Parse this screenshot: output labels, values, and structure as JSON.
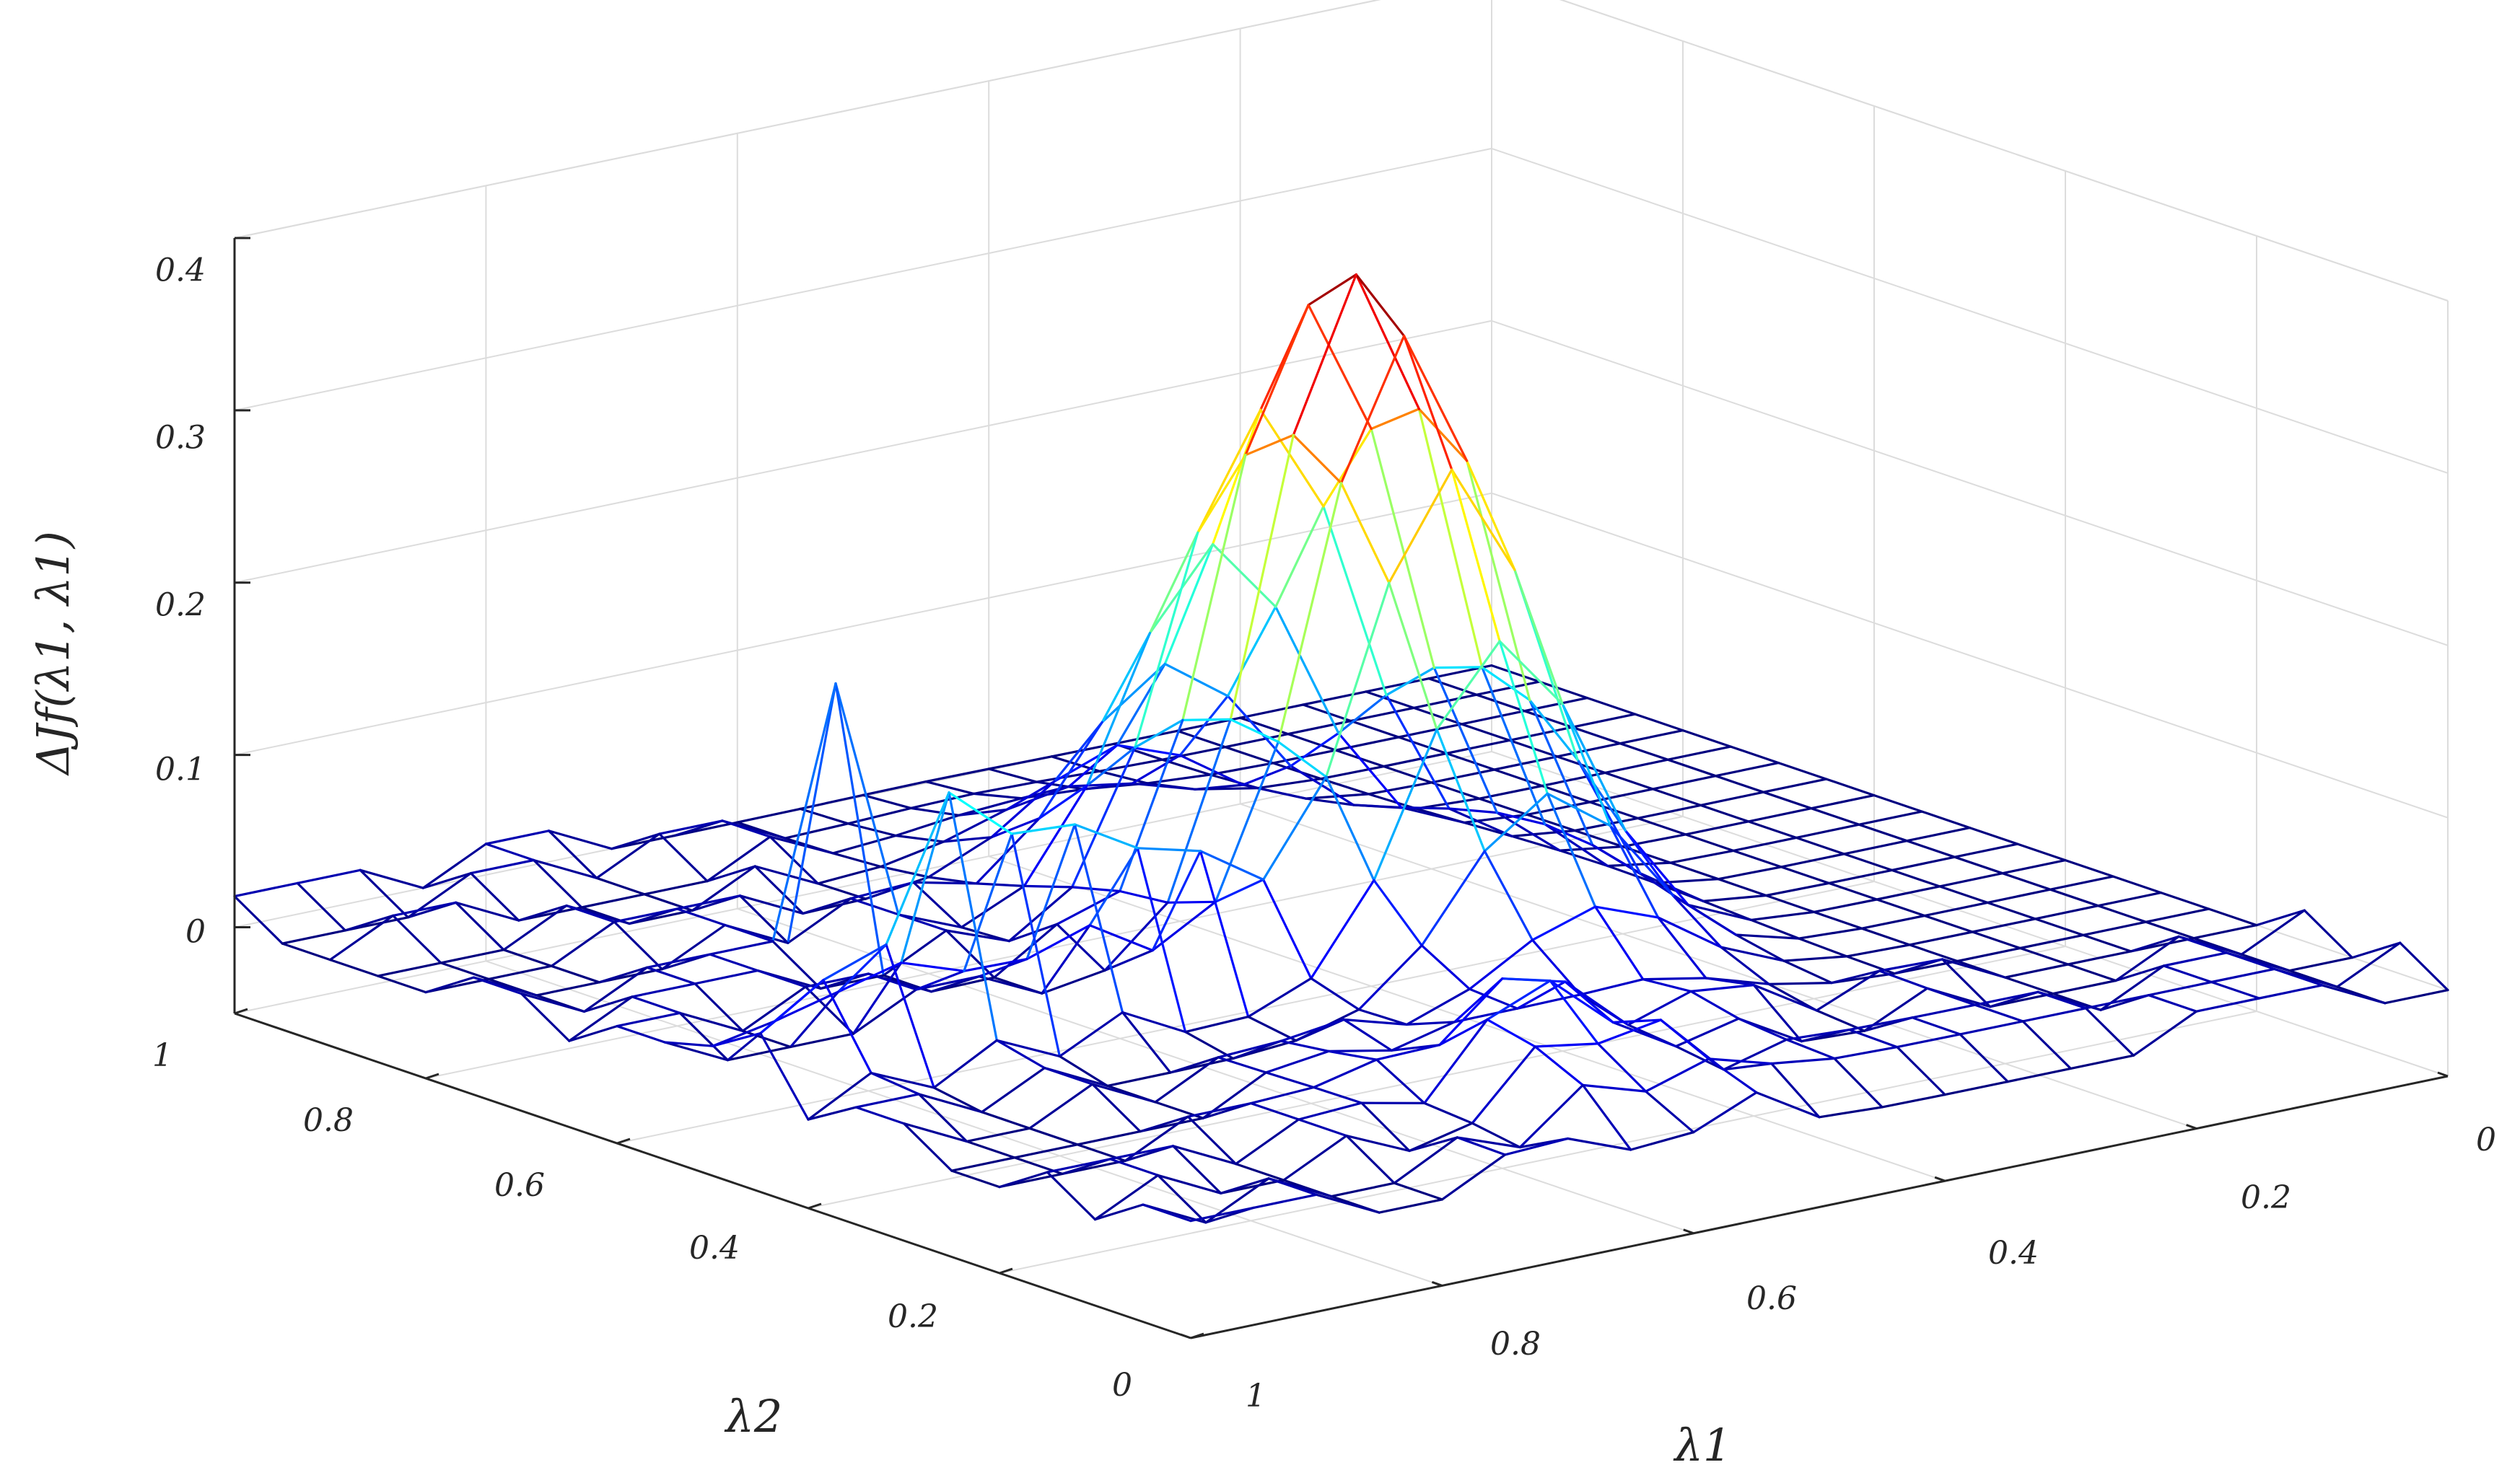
{
  "chart_data": {
    "type": "surface3d",
    "style": "mesh (wireframe), jet colormap, no face fill",
    "xlabel": "λ1",
    "ylabel": "λ2",
    "zlabel": "ΔJf(λ1, λ1)",
    "xlim": [
      0,
      1
    ],
    "ylim": [
      0,
      1
    ],
    "zlim": [
      -0.05,
      0.4
    ],
    "xticks": [
      "0",
      "0.2",
      "0.4",
      "0.6",
      "0.8",
      "1"
    ],
    "yticks": [
      "0",
      "0.2",
      "0.4",
      "0.6",
      "0.8",
      "1"
    ],
    "zticks": [
      "0",
      "0.1",
      "0.2",
      "0.3",
      "0.4"
    ],
    "grid": true,
    "colormap": "jet",
    "grid_resolution": 21,
    "features": [
      {
        "desc": "main ridge",
        "peak_lambda1": 0.45,
        "peak_lambda2": 0.55,
        "peak_value": 0.38
      },
      {
        "desc": "secondary ridge near lambda2 = 0.45",
        "value": 0.14
      },
      {
        "desc": "isolated spikes",
        "value": 0.16
      },
      {
        "desc": "background",
        "value": 0.0
      }
    ]
  }
}
